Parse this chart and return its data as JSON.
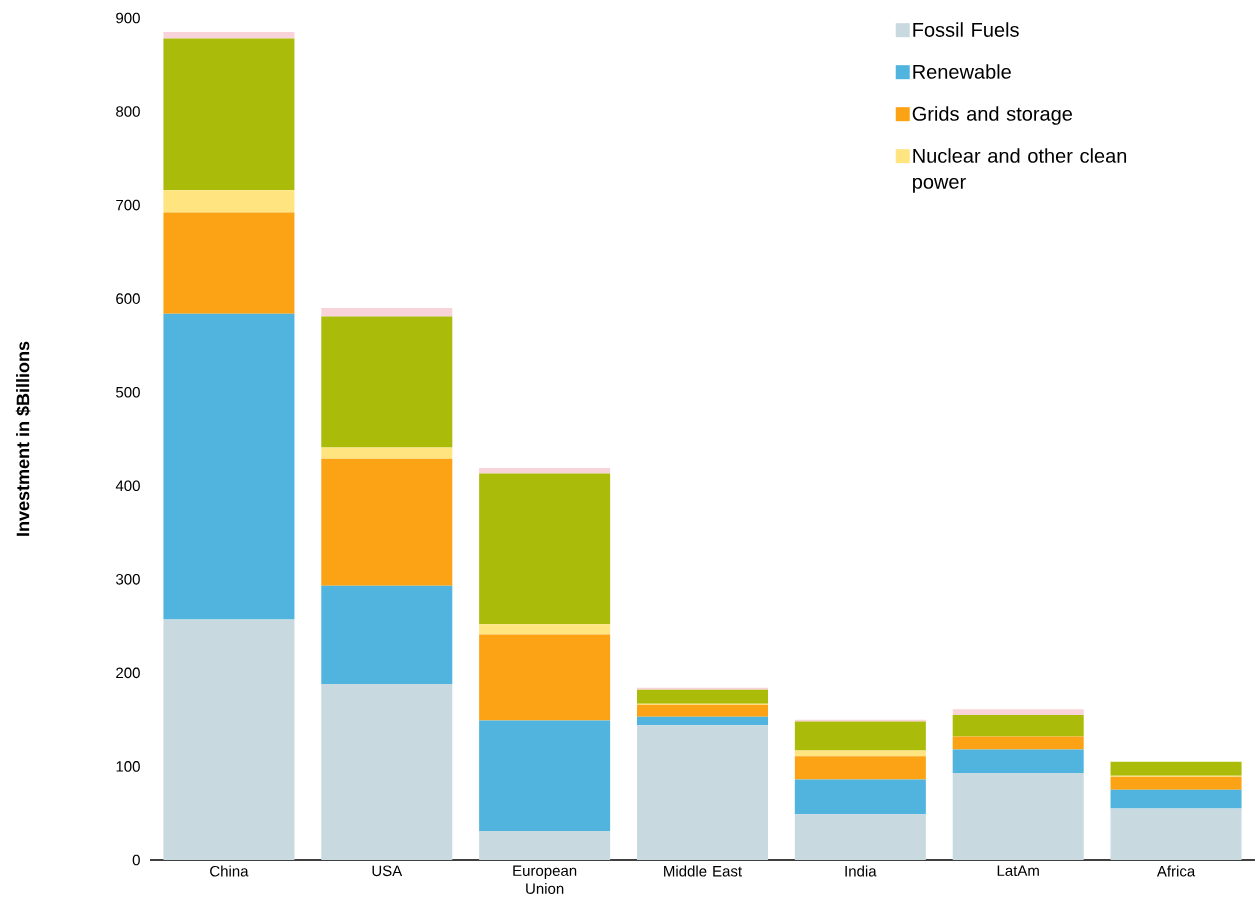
{
  "chart_data": {
    "type": "bar",
    "stacked": true,
    "ylabel": "Investment in $Billions",
    "categories": [
      "China",
      "USA",
      "European Union",
      "Middle East",
      "India",
      "LatAm",
      "Africa"
    ],
    "series": [
      {
        "name": "Fossil Fuels",
        "color": "#c8d9e0",
        "values": [
          257,
          188,
          31,
          144,
          49,
          93,
          55
        ]
      },
      {
        "name": "Renewable",
        "color": "#51b4df",
        "values": [
          327,
          105,
          118,
          9,
          37,
          25,
          20
        ]
      },
      {
        "name": "Grids and storage",
        "color": "#fba314",
        "values": [
          108,
          136,
          92,
          13,
          25,
          14,
          14
        ]
      },
      {
        "name": "Nuclear and other clean power",
        "color": "#ffe480",
        "values": [
          24,
          12,
          11,
          1,
          6,
          null,
          1
        ]
      },
      {
        "color": "#aabb09",
        "values": [
          162,
          140,
          161,
          15,
          31,
          23,
          15
        ]
      },
      {
        "color": "#f8d3d9",
        "values": [
          7,
          9,
          6,
          2,
          2,
          6,
          0
        ]
      }
    ],
    "ylim": [
      0,
      900
    ],
    "yticks": [
      0,
      100,
      200,
      300,
      400,
      500,
      600,
      700,
      800,
      900
    ],
    "grid": false,
    "legend": "top right"
  }
}
